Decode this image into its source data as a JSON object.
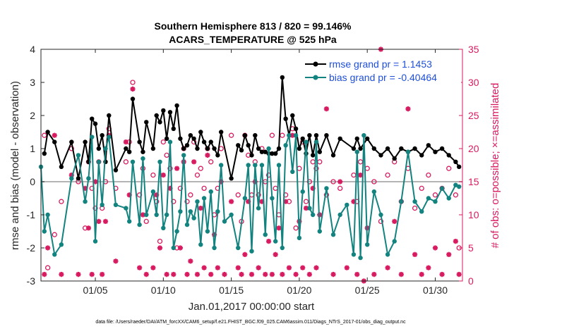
{
  "chart_data": {
    "type": "line",
    "title": "Southern Hemisphere 813 / 820 = 99.146%",
    "subtitle": "ACARS_TEMPERATURE @ 525 hPa",
    "xlabel": "Jan.01,2017 00:00:00 start",
    "ylabel_left": "rmse and bias (model - observation)",
    "ylabel_right": "# of obs: o=possible; ×=assimilated",
    "footer": "data file: /Users/raeder/DAI/ATM_forcXX/CAM6_setup/f.e21.FHIST_BGC.f09_025.CAM6assim.011/Diags_NTrS_2017-01/obs_diag_output.nc",
    "xlim": [
      1,
      32
    ],
    "ylim_left": [
      -3,
      4
    ],
    "ylim_right": [
      0,
      35
    ],
    "xticks": [
      5,
      10,
      15,
      20,
      25,
      30
    ],
    "xtick_labels": [
      "01/05",
      "01/10",
      "01/15",
      "01/20",
      "01/25",
      "01/30"
    ],
    "yticks_left": [
      "-3",
      "-2",
      "-1",
      "0",
      "1",
      "2",
      "3",
      "4"
    ],
    "yticks_right": [
      "0",
      "5",
      "10",
      "15",
      "20",
      "25",
      "30",
      "35"
    ],
    "legend_position": "top-right",
    "colors": {
      "rmse": "#000000",
      "bias": "#13837f",
      "obs": "#d81b60",
      "zero_line": "#b4b4b4",
      "legend_text": "#1f4fd8"
    },
    "series": [
      {
        "name": "rmse grand pr = 1.1453",
        "points": [
          [
            1.25,
            0.85
          ],
          [
            1.5,
            1.5
          ],
          [
            2.0,
            1.2
          ],
          [
            2.5,
            0.45
          ],
          [
            3.25,
            1.2
          ],
          [
            3.75,
            0.1
          ],
          [
            4.25,
            1.2
          ],
          [
            4.5,
            0.6
          ],
          [
            4.75,
            1.9
          ],
          [
            5.0,
            1.75
          ],
          [
            5.25,
            1.0
          ],
          [
            5.5,
            1.4
          ],
          [
            5.75,
            0.6
          ],
          [
            6.0,
            2.0
          ],
          [
            6.5,
            0.35
          ],
          [
            7.25,
            1.0
          ],
          [
            7.5,
            0.9
          ],
          [
            7.75,
            2.5
          ],
          [
            8.25,
            1.2
          ],
          [
            8.5,
            0.9
          ],
          [
            8.75,
            1.8
          ],
          [
            9.25,
            1.0
          ],
          [
            9.5,
            2.0
          ],
          [
            9.75,
            1.8
          ],
          [
            10.0,
            2.15
          ],
          [
            10.25,
            1.3
          ],
          [
            10.5,
            2.1
          ],
          [
            10.75,
            1.6
          ],
          [
            11.0,
            2.3
          ],
          [
            11.25,
            1.3
          ],
          [
            11.5,
            1.0
          ],
          [
            11.75,
            1.1
          ],
          [
            12.0,
            1.4
          ],
          [
            12.25,
            1.3
          ],
          [
            12.5,
            1.0
          ],
          [
            12.75,
            1.5
          ],
          [
            13.0,
            1.2
          ],
          [
            13.25,
            1.0
          ],
          [
            13.5,
            1.2
          ],
          [
            13.75,
            1.0
          ],
          [
            14.0,
            0.8
          ],
          [
            14.25,
            1.5
          ],
          [
            15.0,
            0.1
          ],
          [
            15.5,
            1.1
          ],
          [
            15.75,
            0.95
          ],
          [
            16.0,
            1.4
          ],
          [
            16.25,
            1.1
          ],
          [
            16.5,
            0.8
          ],
          [
            16.75,
            1.4
          ],
          [
            17.0,
            1.0
          ],
          [
            17.25,
            0.9
          ],
          [
            17.5,
            0.9
          ],
          [
            17.75,
            0.85
          ],
          [
            18.0,
            0.85
          ],
          [
            18.25,
            0.85
          ],
          [
            18.5,
            1.0
          ],
          [
            18.75,
            3.15
          ],
          [
            19.0,
            1.9
          ],
          [
            19.25,
            1.4
          ],
          [
            19.5,
            2.0
          ],
          [
            19.75,
            1.6
          ],
          [
            20.0,
            1.0
          ],
          [
            20.25,
            1.3
          ],
          [
            20.5,
            0.85
          ],
          [
            20.75,
            1.4
          ],
          [
            21.0,
            0.8
          ],
          [
            21.25,
            1.4
          ],
          [
            21.5,
            0.9
          ],
          [
            22.0,
            1.4
          ],
          [
            22.5,
            0.8
          ],
          [
            23.0,
            1.3
          ],
          [
            24.0,
            1.0
          ],
          [
            24.25,
            1.3
          ],
          [
            24.5,
            1.0
          ],
          [
            25.0,
            1.3
          ],
          [
            25.5,
            1.0
          ],
          [
            26.0,
            0.8
          ],
          [
            26.5,
            1.0
          ],
          [
            27.0,
            0.7
          ],
          [
            27.5,
            1.0
          ],
          [
            28.0,
            0.9
          ],
          [
            28.5,
            1.0
          ],
          [
            29.0,
            0.8
          ],
          [
            29.5,
            1.1
          ],
          [
            30.0,
            0.9
          ],
          [
            30.5,
            1.0
          ],
          [
            31.0,
            0.8
          ],
          [
            31.5,
            0.6
          ],
          [
            31.75,
            0.45
          ]
        ]
      },
      {
        "name": "bias grand pr = -0.40464",
        "points": [
          [
            1.0,
            0.45
          ],
          [
            1.25,
            -1.5
          ],
          [
            1.5,
            -1.0
          ],
          [
            2.0,
            -2.2
          ],
          [
            2.5,
            -1.9
          ],
          [
            3.25,
            0.1
          ],
          [
            3.75,
            0.8
          ],
          [
            4.25,
            -0.6
          ],
          [
            4.5,
            0.1
          ],
          [
            4.75,
            1.35
          ],
          [
            5.0,
            -1.8
          ],
          [
            5.25,
            0.6
          ],
          [
            5.5,
            -0.7
          ],
          [
            5.75,
            1.0
          ],
          [
            6.0,
            1.35
          ],
          [
            6.5,
            -0.7
          ],
          [
            7.25,
            -0.8
          ],
          [
            7.5,
            -1.2
          ],
          [
            7.75,
            0.6
          ],
          [
            8.25,
            -1.3
          ],
          [
            8.5,
            0.7
          ],
          [
            8.75,
            -1.0
          ],
          [
            9.25,
            -0.3
          ],
          [
            9.5,
            -1.0
          ],
          [
            9.75,
            0.6
          ],
          [
            10.0,
            -1.4
          ],
          [
            10.25,
            -1.0
          ],
          [
            10.5,
            1.2
          ],
          [
            10.75,
            -2.0
          ],
          [
            11.0,
            -1.5
          ],
          [
            11.25,
            -0.9
          ],
          [
            11.5,
            0.8
          ],
          [
            11.75,
            -1.3
          ],
          [
            12.0,
            -0.9
          ],
          [
            12.25,
            -1.1
          ],
          [
            12.5,
            -0.6
          ],
          [
            12.75,
            -1.9
          ],
          [
            13.0,
            -0.5
          ],
          [
            13.25,
            -1.5
          ],
          [
            13.5,
            -0.3
          ],
          [
            13.75,
            -2.0
          ],
          [
            14.0,
            -0.9
          ],
          [
            14.25,
            0.5
          ],
          [
            14.5,
            -1.2
          ],
          [
            15.0,
            -1.0
          ],
          [
            15.5,
            -2.0
          ],
          [
            16.0,
            -0.5
          ],
          [
            16.25,
            0.5
          ],
          [
            16.5,
            -2.1
          ],
          [
            16.75,
            0.5
          ],
          [
            17.0,
            -0.8
          ],
          [
            17.25,
            0.5
          ],
          [
            17.5,
            -1.6
          ],
          [
            17.75,
            1.0
          ],
          [
            18.0,
            -0.5
          ],
          [
            18.25,
            -1.8
          ],
          [
            18.5,
            0.5
          ],
          [
            18.75,
            -2.0
          ],
          [
            19.0,
            1.1
          ],
          [
            19.25,
            1.4
          ],
          [
            19.5,
            0.3
          ],
          [
            19.75,
            1.4
          ],
          [
            20.0,
            -1.7
          ],
          [
            20.25,
            -0.3
          ],
          [
            20.5,
            1.2
          ],
          [
            20.75,
            -0.8
          ],
          [
            21.0,
            -1.0
          ],
          [
            21.25,
            1.2
          ],
          [
            21.5,
            -1.5
          ],
          [
            22.0,
            -0.2
          ],
          [
            22.5,
            -1.6
          ],
          [
            23.0,
            -1.0
          ],
          [
            23.5,
            -0.7
          ],
          [
            24.0,
            -2.2
          ],
          [
            24.25,
            0.9
          ],
          [
            24.5,
            -2.3
          ],
          [
            24.75,
            1.4
          ],
          [
            25.0,
            -1.9
          ],
          [
            25.5,
            -0.3
          ],
          [
            26.0,
            -1.0
          ],
          [
            26.5,
            -2.2
          ],
          [
            27.0,
            -1.8
          ],
          [
            27.5,
            -0.6
          ],
          [
            28.0,
            0.9
          ],
          [
            28.5,
            -0.6
          ],
          [
            29.0,
            -0.9
          ],
          [
            29.5,
            -0.5
          ],
          [
            30.0,
            -0.6
          ],
          [
            30.5,
            -0.2
          ],
          [
            31.0,
            -0.5
          ],
          [
            31.5,
            -0.1
          ],
          [
            31.75,
            -0.15
          ]
        ]
      }
    ],
    "obs_possible": [
      [
        1.25,
        22
      ],
      [
        1.5,
        2
      ],
      [
        2.0,
        7
      ],
      [
        2.5,
        12
      ],
      [
        3.25,
        20
      ],
      [
        3.75,
        15
      ],
      [
        4.25,
        8
      ],
      [
        4.5,
        18
      ],
      [
        4.75,
        14
      ],
      [
        5.0,
        11
      ],
      [
        5.25,
        18
      ],
      [
        5.5,
        11
      ],
      [
        5.75,
        15
      ],
      [
        6.0,
        23
      ],
      [
        6.5,
        14
      ],
      [
        7.25,
        18
      ],
      [
        7.5,
        21
      ],
      [
        7.75,
        30
      ],
      [
        8.25,
        13
      ],
      [
        8.5,
        17
      ],
      [
        8.75,
        9
      ],
      [
        9.25,
        16
      ],
      [
        9.5,
        12
      ],
      [
        9.75,
        6
      ],
      [
        10.0,
        21
      ],
      [
        10.25,
        19
      ],
      [
        10.5,
        17
      ],
      [
        10.75,
        12
      ],
      [
        11.0,
        5
      ],
      [
        11.25,
        14
      ],
      [
        11.5,
        20
      ],
      [
        11.75,
        12
      ],
      [
        12.0,
        13
      ],
      [
        12.25,
        21
      ],
      [
        12.5,
        16
      ],
      [
        12.75,
        17
      ],
      [
        13.0,
        14
      ],
      [
        13.25,
        20
      ],
      [
        13.5,
        18
      ],
      [
        13.75,
        10
      ],
      [
        14.0,
        14
      ],
      [
        14.25,
        20
      ],
      [
        15.0,
        22
      ],
      [
        15.5,
        13
      ],
      [
        15.75,
        9
      ],
      [
        16.0,
        22
      ],
      [
        16.25,
        19
      ],
      [
        16.5,
        13
      ],
      [
        16.75,
        18
      ],
      [
        17.0,
        13
      ],
      [
        17.25,
        20
      ],
      [
        17.5,
        15
      ],
      [
        17.75,
        16
      ],
      [
        18.0,
        22
      ],
      [
        18.25,
        14
      ],
      [
        18.5,
        10
      ],
      [
        18.75,
        22
      ],
      [
        19.0,
        13
      ],
      [
        19.25,
        12
      ],
      [
        19.5,
        23
      ],
      [
        19.75,
        8
      ],
      [
        20.0,
        17
      ],
      [
        20.25,
        21
      ],
      [
        20.5,
        12
      ],
      [
        20.75,
        15
      ],
      [
        21.0,
        18
      ],
      [
        21.25,
        17
      ],
      [
        21.5,
        18
      ],
      [
        22.0,
        13
      ],
      [
        22.5,
        15
      ],
      [
        23.0,
        14
      ],
      [
        24.0,
        16
      ],
      [
        24.25,
        12
      ],
      [
        24.5,
        18
      ],
      [
        25.0,
        17
      ],
      [
        25.5,
        15
      ],
      [
        26.0,
        9
      ],
      [
        26.5,
        16
      ],
      [
        27.0,
        18
      ],
      [
        27.5,
        12
      ],
      [
        28.0,
        17
      ],
      [
        28.5,
        11
      ],
      [
        29.0,
        14
      ],
      [
        29.5,
        16
      ],
      [
        30.0,
        13
      ],
      [
        30.5,
        14
      ],
      [
        31.0,
        17
      ],
      [
        31.5,
        13
      ],
      [
        31.75,
        5
      ]
    ],
    "obs_assimilated": [
      [
        1.25,
        1
      ],
      [
        1.5,
        5
      ],
      [
        2.0,
        22
      ],
      [
        2.5,
        1
      ],
      [
        3.25,
        16
      ],
      [
        3.75,
        1
      ],
      [
        4.25,
        14
      ],
      [
        4.5,
        8
      ],
      [
        4.75,
        1
      ],
      [
        5.0,
        15
      ],
      [
        5.25,
        9
      ],
      [
        5.5,
        1
      ],
      [
        5.75,
        9
      ],
      [
        6.0,
        22
      ],
      [
        6.5,
        3
      ],
      [
        7.25,
        21
      ],
      [
        7.5,
        13
      ],
      [
        7.75,
        29
      ],
      [
        8.25,
        2
      ],
      [
        8.5,
        10
      ],
      [
        8.75,
        1
      ],
      [
        9.25,
        2
      ],
      [
        9.5,
        13
      ],
      [
        9.75,
        5
      ],
      [
        10.0,
        16
      ],
      [
        10.25,
        1
      ],
      [
        10.5,
        14
      ],
      [
        10.75,
        1
      ],
      [
        11.0,
        17
      ],
      [
        11.25,
        5
      ],
      [
        11.5,
        18
      ],
      [
        11.75,
        1
      ],
      [
        12.0,
        3
      ],
      [
        12.25,
        18
      ],
      [
        12.5,
        1
      ],
      [
        12.75,
        11
      ],
      [
        13.0,
        2
      ],
      [
        13.25,
        19
      ],
      [
        13.5,
        1
      ],
      [
        13.75,
        7
      ],
      [
        14.0,
        2
      ],
      [
        14.25,
        15
      ],
      [
        14.5,
        1
      ],
      [
        15.0,
        12
      ],
      [
        15.5,
        2
      ],
      [
        15.75,
        1
      ],
      [
        16.0,
        4
      ],
      [
        16.25,
        12
      ],
      [
        16.5,
        1
      ],
      [
        16.75,
        15
      ],
      [
        17.0,
        2
      ],
      [
        17.25,
        12
      ],
      [
        17.5,
        1
      ],
      [
        17.75,
        6
      ],
      [
        18.0,
        1
      ],
      [
        18.25,
        4
      ],
      [
        18.5,
        8
      ],
      [
        18.75,
        1
      ],
      [
        19.0,
        12
      ],
      [
        19.25,
        2
      ],
      [
        19.5,
        22
      ],
      [
        19.75,
        1
      ],
      [
        20.0,
        9
      ],
      [
        20.25,
        2
      ],
      [
        20.5,
        11
      ],
      [
        20.75,
        1
      ],
      [
        21.0,
        14
      ],
      [
        21.25,
        2
      ],
      [
        21.5,
        10
      ],
      [
        22.0,
        26
      ],
      [
        22.5,
        1
      ],
      [
        23.0,
        15
      ],
      [
        23.5,
        2
      ],
      [
        24.0,
        12
      ],
      [
        24.25,
        1
      ],
      [
        24.5,
        16
      ],
      [
        24.75,
        0
      ],
      [
        25.0,
        8
      ],
      [
        25.5,
        1
      ],
      [
        26.0,
        35
      ],
      [
        26.5,
        2
      ],
      [
        27.0,
        9
      ],
      [
        27.5,
        1
      ],
      [
        28.0,
        26
      ],
      [
        28.5,
        4
      ],
      [
        29.0,
        1
      ],
      [
        29.5,
        2
      ],
      [
        30.0,
        5
      ],
      [
        30.5,
        1
      ],
      [
        31.0,
        4
      ],
      [
        31.5,
        6
      ],
      [
        31.75,
        1
      ]
    ]
  }
}
